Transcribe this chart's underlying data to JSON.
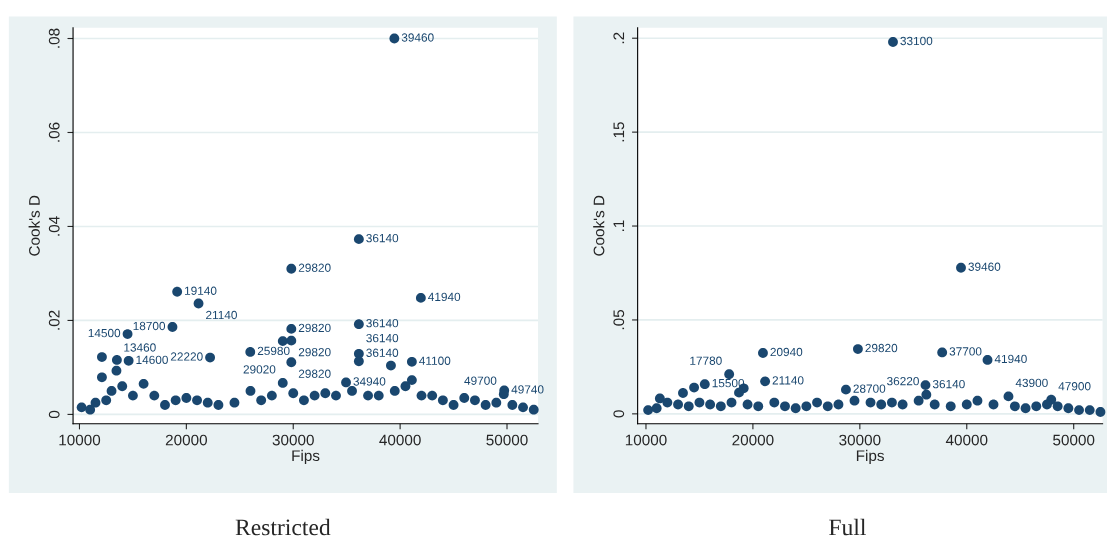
{
  "chart_data": [
    {
      "type": "scatter",
      "title": "Restricted",
      "xlabel": "Fips",
      "ylabel": "Cook's D",
      "xlim": [
        9400,
        52900
      ],
      "ylim": [
        -0.002,
        0.0823
      ],
      "xticks": [
        10000,
        20000,
        30000,
        40000,
        50000
      ],
      "yticks": [
        0,
        {
          "value": 0.02,
          "label": ".02"
        },
        {
          "value": 0.04,
          "label": ".04"
        },
        {
          "value": 0.06,
          "label": ".06"
        },
        {
          "value": 0.08,
          "label": ".08"
        }
      ],
      "grid": "y",
      "marker": "circle",
      "series": [
        {
          "color": "#1a476f",
          "x": [
            39460,
            36140,
            29820,
            19140,
            21140,
            41940,
            18700,
            14500,
            29820,
            36140,
            29020,
            29820,
            25980,
            22220,
            12100,
            13500,
            14600,
            36140,
            36140,
            29820,
            39140,
            41100,
            13460,
            12100,
            34940,
            29020,
            41100,
            49740,
            49700,
            10200,
            11000,
            11500,
            12500,
            13000,
            14000,
            15000,
            16000,
            17000,
            18000,
            19000,
            20000,
            21000,
            22000,
            23000,
            24500,
            26000,
            27000,
            28000,
            30000,
            31000,
            32000,
            33000,
            34000,
            35500,
            37000,
            38000,
            39500,
            40500,
            42000,
            43000,
            44000,
            45000,
            46000,
            47000,
            48000,
            49000,
            50500,
            51500,
            52500
          ],
          "values": [
            0.08,
            0.0373,
            0.031,
            0.0261,
            0.0236,
            0.0248,
            0.0186,
            0.0171,
            0.0182,
            0.0192,
            0.0156,
            0.0157,
            0.0133,
            0.0121,
            0.0122,
            0.0116,
            0.0114,
            0.0129,
            0.0113,
            0.0111,
            0.0104,
            0.0112,
            0.0093,
            0.0079,
            0.0068,
            0.0067,
            0.0073,
            0.0051,
            0.0043,
            0.0015,
            0.001,
            0.0025,
            0.003,
            0.005,
            0.006,
            0.004,
            0.0065,
            0.004,
            0.002,
            0.003,
            0.0035,
            0.003,
            0.0025,
            0.002,
            0.0025,
            0.005,
            0.003,
            0.004,
            0.0045,
            0.003,
            0.004,
            0.0045,
            0.004,
            0.005,
            0.004,
            0.004,
            0.005,
            0.006,
            0.004,
            0.004,
            0.003,
            0.002,
            0.0035,
            0.003,
            0.002,
            0.0025,
            0.002,
            0.0015,
            0.001
          ]
        }
      ],
      "annotations": [
        {
          "text": "39460",
          "x": 39460,
          "y": 0.08
        },
        {
          "text": "36140",
          "x": 36140,
          "y": 0.0373
        },
        {
          "text": "29820",
          "x": 29820,
          "y": 0.031
        },
        {
          "text": "19140",
          "x": 19140,
          "y": 0.0261
        },
        {
          "text": "21140",
          "x": 21140,
          "y": 0.0236
        },
        {
          "text": "41940",
          "x": 41940,
          "y": 0.0248
        },
        {
          "text": "18700",
          "x": 18700,
          "y": 0.0186
        },
        {
          "text": "14500",
          "x": 14500,
          "y": 0.0171
        },
        {
          "text": "29820",
          "x": 29820,
          "y": 0.0182
        },
        {
          "text": "36140",
          "x": 36140,
          "y": 0.0192
        },
        {
          "text": "29820",
          "x": 29820,
          "y": 0.0157
        },
        {
          "text": "25980",
          "x": 25980,
          "y": 0.0133
        },
        {
          "text": "22220",
          "x": 22220,
          "y": 0.0121
        },
        {
          "text": "14600",
          "x": 14600,
          "y": 0.0114
        },
        {
          "text": "36140",
          "x": 36140,
          "y": 0.0129
        },
        {
          "text": "36140",
          "x": 36140,
          "y": 0.0113
        },
        {
          "text": "29820",
          "x": 29820,
          "y": 0.0111
        },
        {
          "text": "41100",
          "x": 41100,
          "y": 0.0112
        },
        {
          "text": "13460",
          "x": 13460,
          "y": 0.0093
        },
        {
          "text": "34940",
          "x": 34940,
          "y": 0.0068
        },
        {
          "text": "29020",
          "x": 29020,
          "y": 0.0067
        },
        {
          "text": "49740",
          "x": 49740,
          "y": 0.0051
        },
        {
          "text": "49700",
          "x": 49700,
          "y": 0.0043
        }
      ]
    },
    {
      "type": "scatter",
      "title": "Full",
      "xlabel": "Fips",
      "ylabel": "Cook's D",
      "xlim": [
        9220,
        52700
      ],
      "ylim": [
        -0.0053,
        0.2056
      ],
      "xticks": [
        10000,
        20000,
        30000,
        40000,
        50000
      ],
      "yticks": [
        0,
        {
          "value": 0.05,
          "label": ".05"
        },
        {
          "value": 0.1,
          "label": ".1"
        },
        {
          "value": 0.15,
          "label": ".15"
        },
        {
          "value": 0.2,
          "label": ".2"
        }
      ],
      "grid": "y",
      "marker": "circle",
      "series": [
        {
          "color": "#1a476f",
          "x": [
            33100,
            39460,
            20940,
            29820,
            37700,
            41940,
            17780,
            21140,
            15500,
            36140,
            28700,
            19140,
            18700,
            14500,
            36220,
            43900,
            47900,
            13460,
            11300,
            10200,
            11000,
            12000,
            13000,
            14000,
            15000,
            16000,
            17000,
            18000,
            19500,
            20500,
            22000,
            23000,
            24000,
            25000,
            26000,
            27000,
            28000,
            29500,
            31000,
            32000,
            33000,
            34000,
            35500,
            37000,
            38500,
            40000,
            41000,
            42500,
            44500,
            45500,
            46500,
            47500,
            48500,
            49500,
            50500,
            51500,
            52500
          ],
          "values": [
            0.198,
            0.0778,
            0.0324,
            0.0345,
            0.0327,
            0.0287,
            0.0211,
            0.0173,
            0.0158,
            0.0153,
            0.0129,
            0.0136,
            0.0113,
            0.014,
            0.0102,
            0.0093,
            0.0075,
            0.0111,
            0.0082,
            0.002,
            0.003,
            0.006,
            0.005,
            0.004,
            0.006,
            0.005,
            0.004,
            0.006,
            0.005,
            0.004,
            0.006,
            0.004,
            0.003,
            0.004,
            0.006,
            0.004,
            0.005,
            0.007,
            0.006,
            0.005,
            0.006,
            0.005,
            0.007,
            0.005,
            0.004,
            0.005,
            0.007,
            0.005,
            0.004,
            0.003,
            0.004,
            0.005,
            0.004,
            0.003,
            0.002,
            0.002,
            0.001
          ]
        }
      ],
      "annotations": [
        {
          "text": "33100",
          "x": 33100,
          "y": 0.198
        },
        {
          "text": "39460",
          "x": 39460,
          "y": 0.0778
        },
        {
          "text": "20940",
          "x": 20940,
          "y": 0.0324
        },
        {
          "text": "29820",
          "x": 29820,
          "y": 0.0345
        },
        {
          "text": "37700",
          "x": 37700,
          "y": 0.0327
        },
        {
          "text": "41940",
          "x": 41940,
          "y": 0.0287
        },
        {
          "text": "17780",
          "x": 17780,
          "y": 0.0211
        },
        {
          "text": "21140",
          "x": 21140,
          "y": 0.0173
        },
        {
          "text": "15500",
          "x": 15500,
          "y": 0.0158
        },
        {
          "text": "36140",
          "x": 36140,
          "y": 0.0153
        },
        {
          "text": "28700",
          "x": 28700,
          "y": 0.0129
        },
        {
          "text": "36220",
          "x": 36220,
          "y": 0.0102
        },
        {
          "text": "43900",
          "x": 43900,
          "y": 0.0093
        },
        {
          "text": "47900",
          "x": 47900,
          "y": 0.0075
        }
      ]
    }
  ]
}
